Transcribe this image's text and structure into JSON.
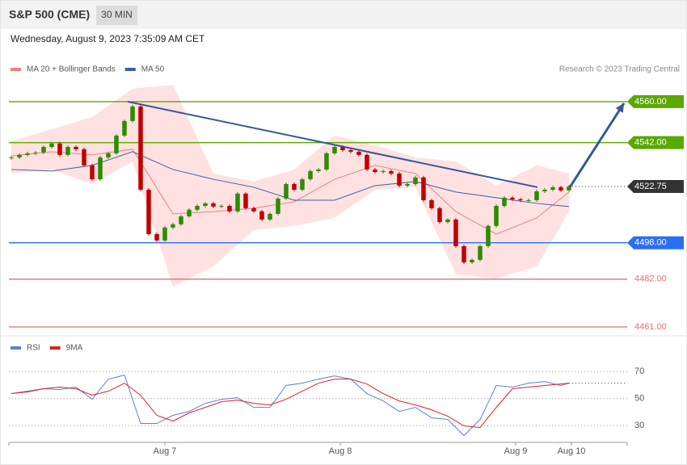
{
  "header": {
    "title": "S&P 500 (CME)",
    "interval": "30 MIN",
    "timestamp": "Wednesday, August 9, 2023 7:35:09 AM CET"
  },
  "chart_data": [
    {
      "type": "candlestick",
      "credit": "Research © 2023 Trading Central",
      "values": [
        4535.5,
        4536.6,
        4537.3,
        4537.6,
        4540.1,
        4541.6,
        4536.6,
        4540.1,
        4539.1,
        4532.0,
        4525.9,
        4535.5,
        4537.3,
        4545.1,
        4551.5,
        4557.9,
        4521.3,
        4501.8,
        4499.0,
        4504.7,
        4506.1,
        4509.6,
        4512.5,
        4514.2,
        4515.3,
        4513.9,
        4514.2,
        4511.8,
        4519.6,
        4513.2,
        4511.8,
        4508.2,
        4510.7,
        4517.4,
        4523.8,
        4521.3,
        4525.9,
        4529.5,
        4530.2,
        4537.3,
        4540.1,
        4538.7,
        4538.0,
        4536.6,
        4530.2,
        4529.1,
        4529.5,
        4528.4,
        4523.1,
        4523.8,
        4526.7,
        4516.7,
        4513.2,
        4507.1,
        4508.2,
        4496.5,
        4489.4,
        4490.5,
        4496.5,
        4505.4,
        4514.2,
        4517.8,
        4517.1,
        4516.7,
        4516.7,
        4520.6,
        4521.3,
        4522.4,
        4521.0,
        4522.75
      ],
      "up_color": "#2e8b00",
      "down_color": "#c00000",
      "series": [
        {
          "name": "MA 20 + Bollinger Bands",
          "color": "#f08080",
          "band_color": "#ffd9d9",
          "x": [
            0,
            5,
            10,
            15,
            20,
            25,
            30,
            35,
            40,
            45,
            50,
            55,
            60,
            65,
            69
          ],
          "values": [
            4536.2,
            4538.0,
            4536.6,
            4539.1,
            4510.7,
            4511.7,
            4513.2,
            4516.0,
            4525.9,
            4532.0,
            4528.4,
            4511.7,
            4501.8,
            4508.9,
            4520.3
          ],
          "upper": [
            4542.6,
            4547.9,
            4553.3,
            4565.7,
            4567.4,
            4528.4,
            4524.9,
            4530.2,
            4545.1,
            4540.8,
            4535.5,
            4533.7,
            4523.1,
            4532.0,
            4528.4
          ],
          "lower": [
            4528.4,
            4530.2,
            4523.8,
            4533.7,
            4478.7,
            4487.6,
            4503.6,
            4505.4,
            4508.9,
            4521.3,
            4522.4,
            4484.1,
            4482.3,
            4487.6,
            4511.7
          ]
        },
        {
          "name": "MA 50",
          "color": "#3a5fa0",
          "x": [
            0,
            5,
            10,
            15,
            20,
            25,
            30,
            35,
            40,
            45,
            50,
            55,
            60,
            65,
            69
          ],
          "values": [
            4530.2,
            4529.5,
            4532.0,
            4538.0,
            4530.2,
            4525.9,
            4522.4,
            4516.7,
            4516.7,
            4523.1,
            4524.9,
            4520.3,
            4517.8,
            4515.3,
            4513.9
          ]
        }
      ],
      "trendline": {
        "color": "#34589a",
        "x": [
          14.4,
          65.1
        ],
        "values": [
          4560,
          4522.4
        ]
      },
      "arrow": {
        "color": "#34589a",
        "x": [
          69.1,
          75.8
        ],
        "values": [
          4522.4,
          4559.3
        ]
      },
      "levels": [
        {
          "value": 4560,
          "label": "4560.00",
          "color": "#5aa800",
          "style": "solid",
          "tag": true
        },
        {
          "value": 4542,
          "label": "4542.00",
          "color": "#5aa800",
          "style": "solid",
          "tag": true
        },
        {
          "value": 4522.75,
          "label": "4522.75",
          "color": "#333333",
          "style": "dotted",
          "tag": true
        },
        {
          "value": 4498,
          "label": "4498.00",
          "color": "#2a6ff0",
          "style": "solid",
          "tag": true
        },
        {
          "value": 4482,
          "label": "4482.00",
          "color": "#e07070",
          "style": "solid",
          "tag": false
        },
        {
          "value": 4461,
          "label": "4461.00",
          "color": "#e07070",
          "style": "solid",
          "tag": false
        }
      ],
      "xlim": [
        -0.3,
        76.2
      ],
      "ylim": [
        4457.1,
        4569.2
      ]
    },
    {
      "type": "line",
      "series": [
        {
          "name": "RSI",
          "color": "#5b7fd6",
          "x": [
            0,
            2,
            4,
            6,
            8,
            10,
            12,
            14,
            16,
            18,
            20,
            22,
            24,
            26,
            28,
            30,
            32,
            34,
            36,
            38,
            40,
            42,
            44,
            46,
            48,
            50,
            52,
            54,
            56,
            58,
            60,
            62,
            64,
            66,
            68,
            69
          ],
          "values": [
            53.6,
            55.4,
            57.2,
            56.6,
            58.4,
            49.4,
            64.3,
            67.3,
            31.5,
            31.5,
            37.5,
            40.4,
            46.4,
            49.4,
            50.6,
            43.4,
            43.4,
            59.6,
            61.3,
            64.3,
            66.7,
            64.3,
            53.6,
            48.2,
            40.4,
            43.4,
            35.7,
            34.5,
            22.5,
            34.5,
            59.6,
            58.4,
            61.3,
            62.5,
            59.6,
            61.3
          ]
        },
        {
          "name": "9MA",
          "color": "#e02020",
          "x": [
            0,
            2,
            4,
            6,
            8,
            10,
            12,
            14,
            16,
            18,
            20,
            22,
            24,
            26,
            28,
            30,
            32,
            34,
            36,
            38,
            40,
            42,
            44,
            46,
            48,
            50,
            52,
            54,
            56,
            58,
            60,
            62,
            64,
            66,
            68,
            69
          ],
          "values": [
            53.6,
            54.8,
            57.2,
            58.4,
            57.2,
            52.4,
            55.4,
            61.3,
            52.4,
            37.5,
            33.3,
            39.3,
            43.4,
            47.6,
            48.8,
            46.4,
            45.2,
            49.4,
            55.4,
            61.3,
            64.3,
            64.3,
            60.7,
            53.6,
            48.2,
            45.2,
            41.6,
            36.9,
            29.7,
            28.5,
            43.4,
            57.2,
            58.4,
            59.6,
            60.7,
            61.3
          ]
        }
      ],
      "xlim": [
        -0.3,
        76.2
      ],
      "ylim": [
        17.5,
        82
      ],
      "yticks": [
        30,
        50,
        70
      ],
      "xticks": [
        {
          "value": 19,
          "label": "Aug 7"
        },
        {
          "value": 40.7,
          "label": "Aug 8"
        },
        {
          "value": 62.4,
          "label": "Aug 9"
        },
        {
          "value": 69.3,
          "label": "Aug 10"
        }
      ]
    }
  ]
}
